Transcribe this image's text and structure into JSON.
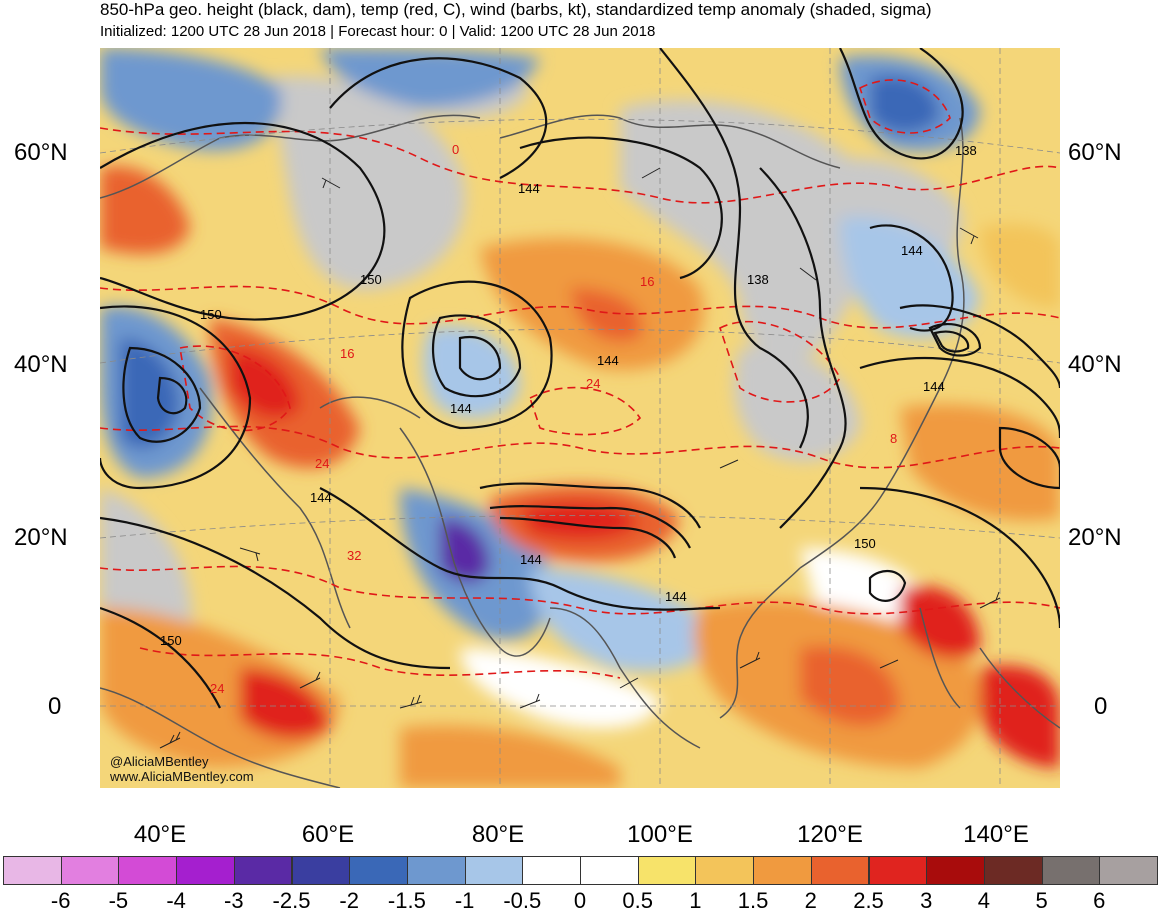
{
  "title": "850-hPa geo. height (black, dam), temp (red, C), wind (barbs, kt), standardized temp anomaly (shaded, sigma)",
  "subtitle": "Initialized: 1200 UTC 28 Jun 2018 | Forecast hour: 0 | Valid: 1200 UTC 28 Jun 2018",
  "lat_labels": [
    "60°N",
    "40°N",
    "20°N",
    "0"
  ],
  "lon_labels": [
    "40°E",
    "60°E",
    "80°E",
    "100°E",
    "120°E",
    "140°E"
  ],
  "height_labels": [
    "144",
    "150",
    "138",
    "150",
    "144",
    "144",
    "144",
    "144",
    "150",
    "144",
    "144",
    "150",
    "138",
    "144"
  ],
  "temp_labels": [
    "0",
    "16",
    "16",
    "24",
    "24",
    "32",
    "24",
    "8"
  ],
  "credit": {
    "handle": "@AliciaMBentley",
    "url": "www.AliciaMBentley.com"
  },
  "colorbar": {
    "labels": [
      "-6",
      "-5",
      "-4",
      "-3",
      "-2.5",
      "-2",
      "-1.5",
      "-1",
      "-0.5",
      "0",
      "0.5",
      "1",
      "1.5",
      "2",
      "2.5",
      "3",
      "4",
      "5",
      "6"
    ],
    "colors": [
      "#e8b7e6",
      "#e27fe0",
      "#d34bd6",
      "#a51fcf",
      "#5a2aa5",
      "#3a3ea0",
      "#3a68b7",
      "#6e98cf",
      "#a7c6e8",
      "#ffffff",
      "#ffffff",
      "#f7e36a",
      "#f3c45a",
      "#f09a3f",
      "#e9622e",
      "#e0241f",
      "#a80c0c",
      "#6c2a24",
      "#77706e",
      "#a7a0a0"
    ]
  }
}
